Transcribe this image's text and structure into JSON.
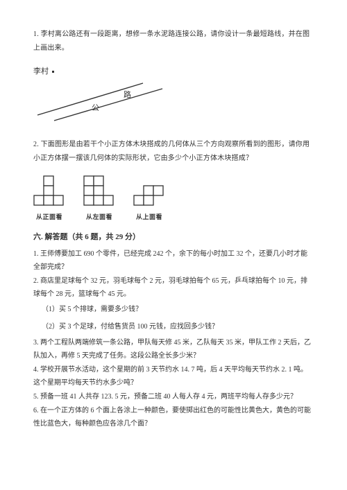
{
  "q1": {
    "text": "1. 李村离公路还有一段距离，想修一条水泥路连接公路，请你设计一条最短路线，并在图上画出来。",
    "village_label": "李村",
    "road_label_1": "公",
    "road_label_2": "路"
  },
  "q2": {
    "text": "2. 下面图形是由若干个小正方体木块搭成的几何体从三个方向观察所看到的图形，请你用小正方体摆一摆该几何体的实际形状，它由多少个小正方体木块搭成？",
    "views": [
      {
        "caption": "从正面看",
        "cells": [
          [
            0,
            1,
            0
          ],
          [
            0,
            1,
            0
          ],
          [
            1,
            1,
            1
          ]
        ]
      },
      {
        "caption": "从左面看",
        "cells": [
          [
            1,
            1,
            0
          ],
          [
            1,
            1,
            0
          ],
          [
            1,
            1,
            1
          ]
        ]
      },
      {
        "caption": "从上面看",
        "cells": [
          [
            0,
            1,
            1
          ],
          [
            1,
            1,
            0
          ]
        ]
      }
    ]
  },
  "section6": {
    "title": "六. 解答题（共 6 题，共 29 分）",
    "items": {
      "p1": "1. 王师傅要加工 690 个零件，已经完成 242 个，余下的每小时加工 32 个，还要几小时才能全部完成？",
      "p2": "2. 商店里足球每个 32 元，羽毛球每个 2 元，羽毛球拍每个 65 元，乒乓球拍每个 10 元，排球每个 28 元，篮球每个 45 元。",
      "p2a": "（1）买 5 个排球，需要多少钱？",
      "p2b": "（2）买 3 个足球，付给售货员 100 元钱，应找回多少钱？",
      "p3": "3. 两个工程队两端修筑一条公路，甲队每天修 45 米，乙队每天 35 米，甲队工作 2 天后，乙队加入，再修 5 天完成了任务。这段公路全长多少米？",
      "p4": "4. 学校开展节水活动，这个星期的前 3 天节约水 14. 7 吨，后 4 天平均每天节约水 2. 1 吨。这个星期平均每天节约水多少吨？",
      "p5": "5. 预备一班 41 人共存 123. 5 元，预备二班 40 人每人存 4 元，两班平均每人存多少元？",
      "p6": "6. 在一个正方体的 6 个面上各涂上一种颜色，要使掷出红色的可能性比黄色大，黄色的可能性比蓝色大，每种颜色应各涂几个面？"
    }
  },
  "style": {
    "text_color": "#323232",
    "line_color": "#333333",
    "cell_size": 14
  }
}
